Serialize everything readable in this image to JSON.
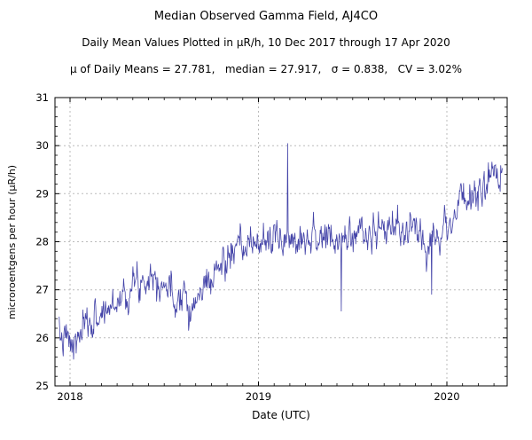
{
  "chart_data": {
    "type": "line",
    "title": "Median Observed Gamma Field, AJ4CO",
    "subtitle": "Daily Mean Values Plotted in μR/h, 10 Dec 2017 through 17 Apr 2020",
    "stats_line": "μ of Daily Means = 27.781,   median = 27.917,   σ = 0.838,   CV = 3.02%",
    "stats": {
      "mean_of_daily_means": 27.781,
      "median": 27.917,
      "sigma": 0.838,
      "cv_percent": 3.02
    },
    "xlabel": "Date (UTC)",
    "ylabel": "microroentgens per hour (μR/h)",
    "xlim": [
      2017.92,
      2020.32
    ],
    "ylim": [
      25,
      31
    ],
    "xticks": [
      2018,
      2019,
      2020
    ],
    "xtick_labels": [
      "2018",
      "2019",
      "2020"
    ],
    "yticks": [
      25,
      26,
      27,
      28,
      29,
      30,
      31
    ],
    "grid": true,
    "line_color": "#4343A8",
    "grid_color": "#bbbbbb",
    "frame_color": "#000000",
    "series_start": 2017.942,
    "series_end": 2020.294,
    "n_points": 860,
    "noise_sigma": 0.16,
    "noise_persistence": 0.5,
    "seed": 7,
    "trend_keypoints": [
      [
        2017.942,
        26.0
      ],
      [
        2017.98,
        25.95
      ],
      [
        2018.02,
        25.8
      ],
      [
        2018.06,
        26.1
      ],
      [
        2018.12,
        26.35
      ],
      [
        2018.2,
        26.6
      ],
      [
        2018.28,
        26.9
      ],
      [
        2018.36,
        27.15
      ],
      [
        2018.43,
        27.35
      ],
      [
        2018.5,
        27.15
      ],
      [
        2018.56,
        26.75
      ],
      [
        2018.6,
        27.1
      ],
      [
        2018.65,
        26.55
      ],
      [
        2018.7,
        27.0
      ],
      [
        2018.78,
        27.4
      ],
      [
        2018.86,
        27.75
      ],
      [
        2018.93,
        27.85
      ],
      [
        2019.0,
        28.0
      ],
      [
        2019.1,
        28.05
      ],
      [
        2019.2,
        28.1
      ],
      [
        2019.3,
        28.15
      ],
      [
        2019.42,
        27.95
      ],
      [
        2019.5,
        28.2
      ],
      [
        2019.6,
        28.15
      ],
      [
        2019.7,
        28.3
      ],
      [
        2019.8,
        28.2
      ],
      [
        2019.9,
        28.1
      ],
      [
        2019.97,
        28.2
      ],
      [
        2020.02,
        28.45
      ],
      [
        2020.08,
        28.85
      ],
      [
        2020.15,
        29.0
      ],
      [
        2020.22,
        29.2
      ],
      [
        2020.294,
        29.3
      ]
    ],
    "spikes": [
      [
        2018.02,
        25.55
      ],
      [
        2018.63,
        26.15
      ],
      [
        2019.155,
        30.05
      ],
      [
        2019.44,
        26.55
      ],
      [
        2019.92,
        26.9
      ],
      [
        2020.22,
        29.65
      ]
    ]
  }
}
